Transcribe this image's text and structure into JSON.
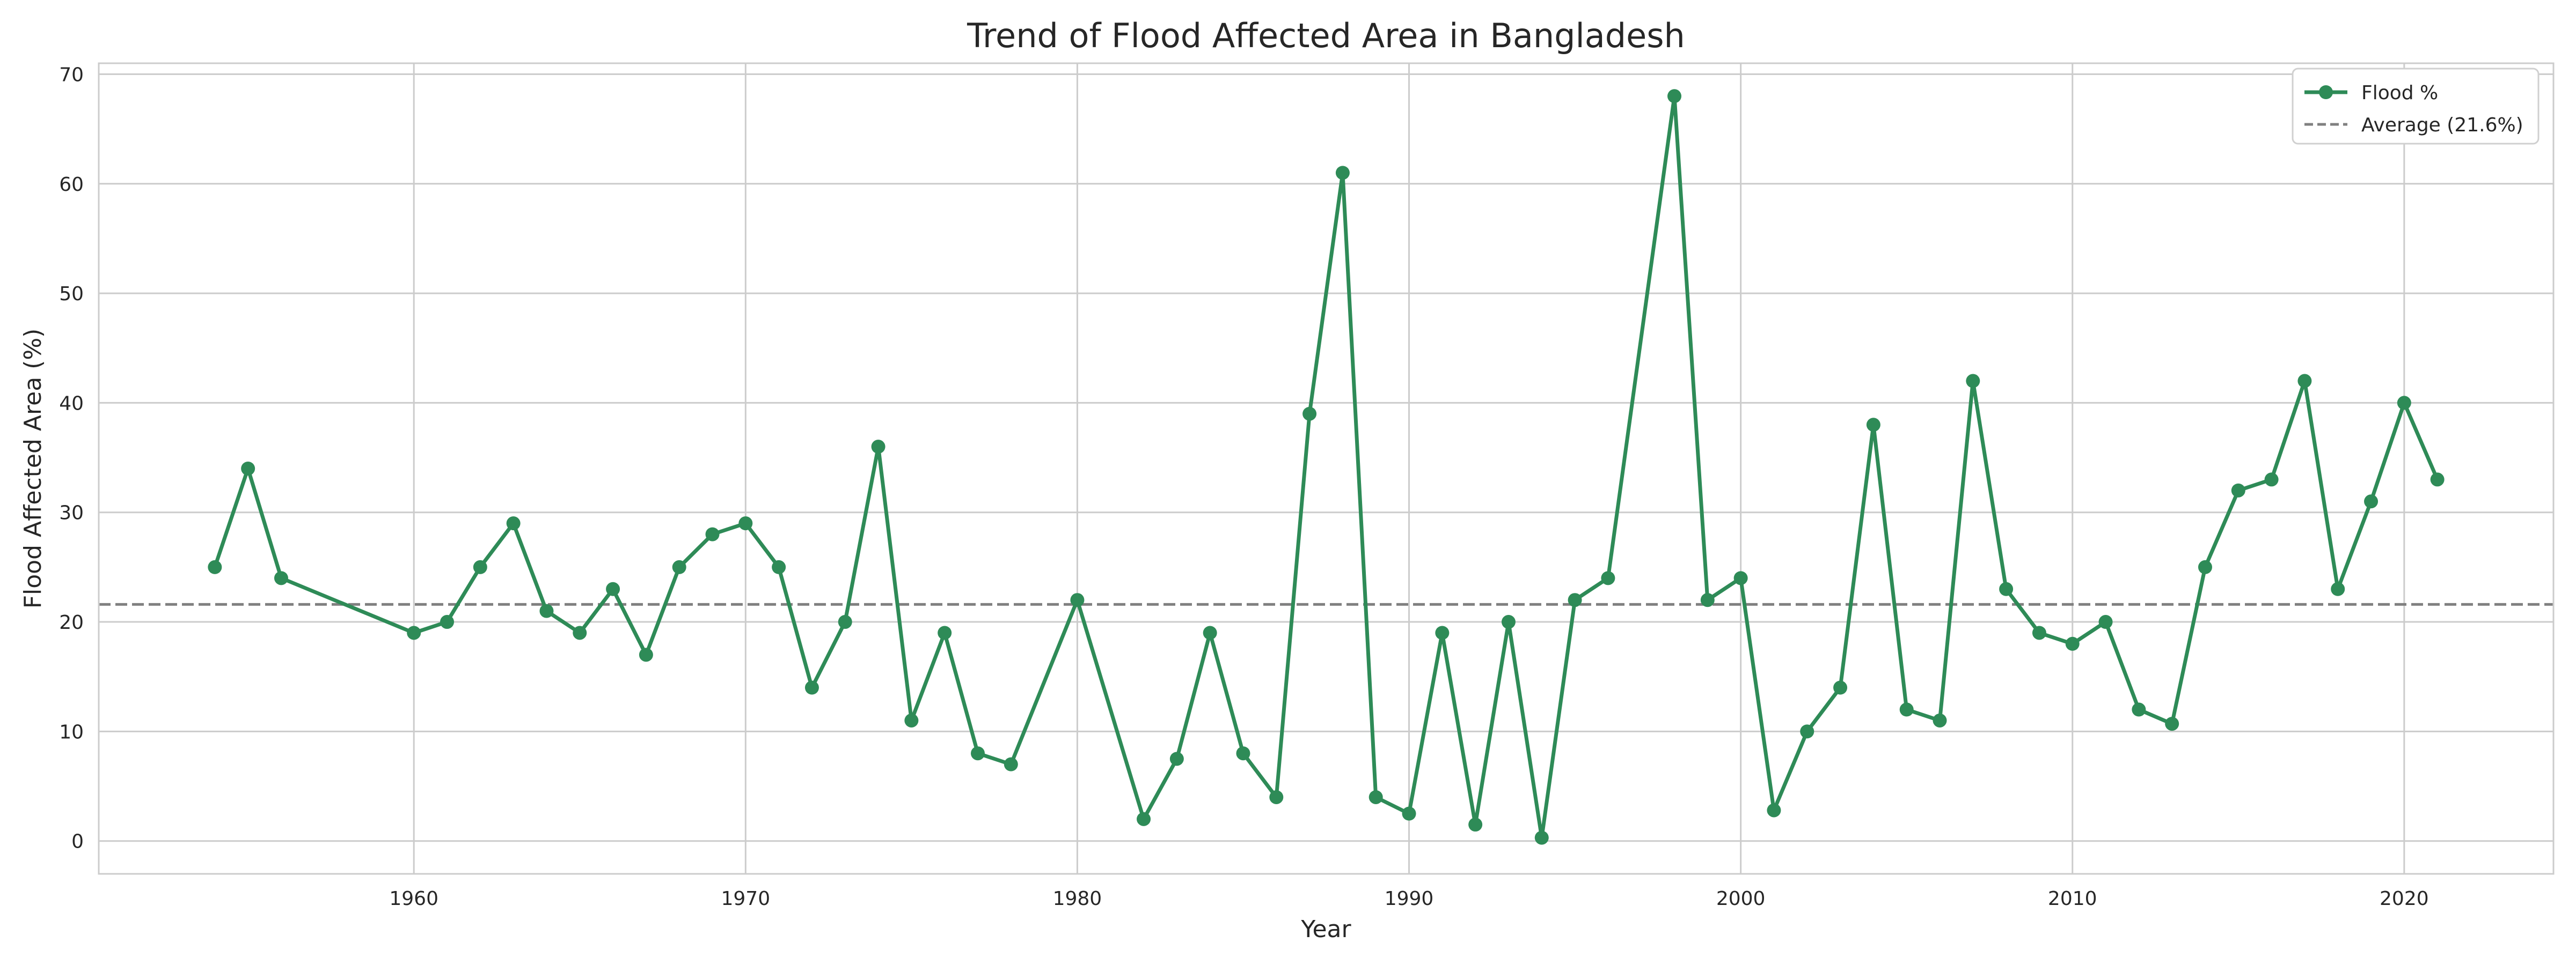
{
  "chart_data": {
    "type": "line",
    "title": "Trend of Flood Affected Area in Bangladesh",
    "xlabel": "Year",
    "ylabel": "Flood Affected Area (%)",
    "xlim": [
      1950.5,
      2024.5
    ],
    "ylim": [
      -3,
      71
    ],
    "x_ticks": [
      1960,
      1970,
      1980,
      1990,
      2000,
      2010,
      2020
    ],
    "y_ticks": [
      0,
      10,
      20,
      30,
      40,
      50,
      60,
      70
    ],
    "grid": true,
    "legend_position": "top-right",
    "series": [
      {
        "name": "Flood %",
        "color": "#2e8b57",
        "marker": "circle",
        "x": [
          1954,
          1955,
          1956,
          1960,
          1961,
          1962,
          1963,
          1964,
          1965,
          1966,
          1967,
          1968,
          1969,
          1970,
          1971,
          1972,
          1973,
          1974,
          1975,
          1976,
          1977,
          1978,
          1980,
          1982,
          1983,
          1984,
          1985,
          1986,
          1987,
          1988,
          1989,
          1990,
          1991,
          1992,
          1993,
          1994,
          1995,
          1996,
          1998,
          1999,
          2000,
          2001,
          2002,
          2003,
          2004,
          2005,
          2006,
          2007,
          2008,
          2009,
          2010,
          2011,
          2012,
          2013,
          2014,
          2015,
          2016,
          2017,
          2018,
          2019,
          2020,
          2021
        ],
        "y": [
          25,
          34,
          24,
          19,
          20,
          25,
          29,
          21,
          19,
          23,
          17,
          25,
          28,
          29,
          25,
          14,
          20,
          36,
          11,
          19,
          8,
          7,
          22,
          2,
          7.5,
          19,
          8,
          4,
          39,
          61,
          4,
          2.5,
          19,
          1.5,
          20,
          0.3,
          22,
          24,
          68,
          22,
          24,
          2.8,
          10,
          14,
          38,
          12,
          11,
          42,
          23,
          19,
          18,
          20,
          12,
          10.7,
          25,
          32,
          33,
          42,
          23,
          31,
          40,
          33
        ]
      },
      {
        "name": "Average (21.6%)",
        "color": "#808080",
        "style": "dashed",
        "y_const": 21.6
      }
    ]
  }
}
